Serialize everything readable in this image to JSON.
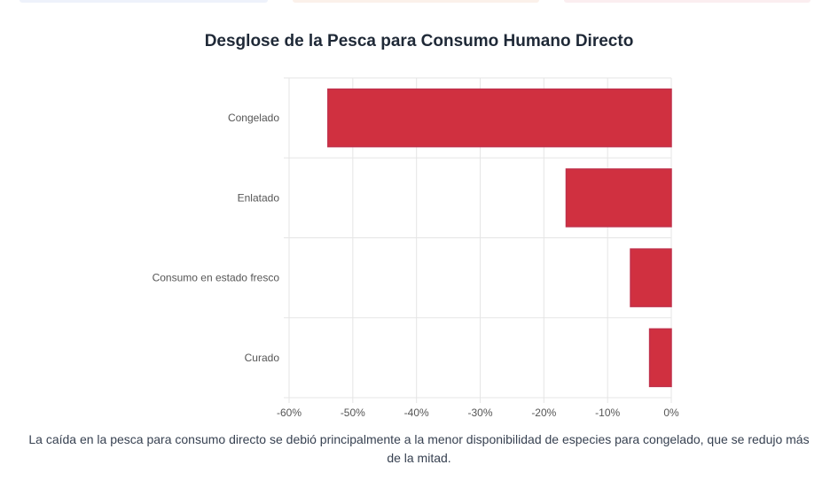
{
  "title": "Desglose de la Pesca para Consumo Humano Directo",
  "caption": "La caída en la pesca para consumo directo se debió principalmente a la menor disponibilidad de especies para congelado, que se redujo más de la mitad.",
  "colors": {
    "bar": "#d03040",
    "bar_border": "#c0304a",
    "grid": "#e5e5e5",
    "axis_text": "#555555"
  },
  "chart_data": {
    "type": "bar",
    "orientation": "horizontal",
    "title": "Desglose de la Pesca para Consumo Humano Directo",
    "categories": [
      "Congelado",
      "Enlatado",
      "Consumo en estado fresco",
      "Curado"
    ],
    "values": [
      -53.9,
      -16.5,
      -6.4,
      -3.4
    ],
    "xlim": [
      -60,
      0
    ],
    "xticks": [
      -60,
      -50,
      -40,
      -30,
      -20,
      -10,
      0
    ],
    "tick_labels": [
      "-60%",
      "-50%",
      "-40%",
      "-30%",
      "-20%",
      "-10%",
      "0%"
    ],
    "xlabel": "",
    "ylabel": "",
    "grid": true,
    "legend": "none"
  }
}
